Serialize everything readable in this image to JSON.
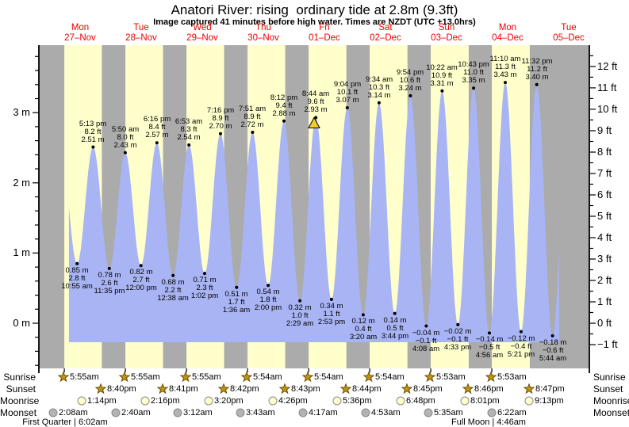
{
  "title": "Anatori River: rising  ordinary tide at 2.8m (9.3ft)",
  "subtitle": "Image captured 41 minutes before high water. Times are NZDT (UTC +13.0hrs)",
  "colors": {
    "day_band": "#ffffcc",
    "night_band": "#ababab",
    "tide_fill": "#a8b4f3",
    "day_label_red": "#ee0000",
    "star_fill": "#c5940e",
    "star_edge": "#6b5206",
    "moonrise_fill": "#ffffcc",
    "moonset_fill": "#b3b3b3",
    "moon_edge": "#8a8a8a",
    "marker_fill": "#f0d028",
    "axis": "#000000"
  },
  "rows": {
    "sunrise_label": "Sunrise",
    "sunset_label": "Sunset",
    "moonrise_label": "Moonrise",
    "moonset_label": "Moonset"
  },
  "moon_phases": [
    {
      "label": "First Quarter | 6:02am",
      "t_hours": 6.03
    },
    {
      "label": "Full Moon | 4:46am",
      "t_hours": 172.77
    }
  ],
  "chart_data": {
    "type": "area",
    "title": "Anatori River: rising ordinary tide at 2.8m (9.3ft)",
    "ylabel_left": "m",
    "ylabel_right": "ft",
    "y_axis_left": {
      "unit": "m",
      "ticks": [
        0,
        1,
        2,
        3
      ]
    },
    "y_axis_right": {
      "unit": "ft",
      "ticks": [
        -1,
        0,
        1,
        2,
        3,
        4,
        5,
        6,
        7,
        8,
        9,
        10,
        11,
        12
      ]
    },
    "days": [
      {
        "name": "Mon",
        "date": "27–Nov"
      },
      {
        "name": "Tue",
        "date": "28–Nov"
      },
      {
        "name": "Wed",
        "date": "29–Nov"
      },
      {
        "name": "Thu",
        "date": "30–Nov"
      },
      {
        "name": "Fri",
        "date": "01–Dec"
      },
      {
        "name": "Sat",
        "date": "02–Dec"
      },
      {
        "name": "Sun",
        "date": "03–Dec"
      },
      {
        "name": "Mon",
        "date": "04–Dec"
      },
      {
        "name": "Tue",
        "date": "05–Dec"
      }
    ],
    "tide_events": [
      {
        "type": "low",
        "time": "10:55 am",
        "ft": "2.8 ft",
        "m": "0.85 m",
        "height_m": 0.85,
        "t_hours": 10.917
      },
      {
        "type": "high",
        "time": "5:13 pm",
        "ft": "8.2 ft",
        "m": "2.51 m",
        "height_m": 2.51,
        "t_hours": 17.217
      },
      {
        "type": "low",
        "time": "11:35 pm",
        "ft": "2.6 ft",
        "m": "0.78 m",
        "height_m": 0.78,
        "t_hours": 23.583
      },
      {
        "type": "high",
        "time": "5:50 am",
        "ft": "8.0 ft",
        "m": "2.43 m",
        "height_m": 2.43,
        "t_hours": 29.833
      },
      {
        "type": "low",
        "time": "12:00 pm",
        "ft": "2.7 ft",
        "m": "0.82 m",
        "height_m": 0.82,
        "t_hours": 36.0
      },
      {
        "type": "high",
        "time": "6:16 pm",
        "ft": "8.4 ft",
        "m": "2.57 m",
        "height_m": 2.57,
        "t_hours": 42.267
      },
      {
        "type": "low",
        "time": "12:38 am",
        "ft": "2.2 ft",
        "m": "0.68 m",
        "height_m": 0.68,
        "t_hours": 48.633
      },
      {
        "type": "high",
        "time": "6:53 am",
        "ft": "8.3 ft",
        "m": "2.54 m",
        "height_m": 2.54,
        "t_hours": 54.883
      },
      {
        "type": "low",
        "time": "1:02 pm",
        "ft": "2.3 ft",
        "m": "0.71 m",
        "height_m": 0.71,
        "t_hours": 61.033
      },
      {
        "type": "high",
        "time": "7:16 pm",
        "ft": "8.9 ft",
        "m": "2.70 m",
        "height_m": 2.7,
        "t_hours": 67.267
      },
      {
        "type": "low",
        "time": "1:36 am",
        "ft": "1.7 ft",
        "m": "0.51 m",
        "height_m": 0.51,
        "t_hours": 73.6
      },
      {
        "type": "high",
        "time": "7:51 am",
        "ft": "8.9 ft",
        "m": "2.72 m",
        "height_m": 2.72,
        "t_hours": 79.85
      },
      {
        "type": "low",
        "time": "2:00 pm",
        "ft": "1.8 ft",
        "m": "0.54 m",
        "height_m": 0.54,
        "t_hours": 86.0
      },
      {
        "type": "high",
        "time": "8:12 pm",
        "ft": "9.4 ft",
        "m": "2.88 m",
        "height_m": 2.88,
        "t_hours": 92.2
      },
      {
        "type": "low",
        "time": "2:29 am",
        "ft": "1.0 ft",
        "m": "0.32 m",
        "height_m": 0.32,
        "t_hours": 98.483
      },
      {
        "type": "high",
        "time": "8:44 am",
        "ft": "9.6 ft",
        "m": "2.93 m",
        "height_m": 2.93,
        "t_hours": 104.733,
        "has_marker": true
      },
      {
        "type": "low",
        "time": "2:53 pm",
        "ft": "1.1 ft",
        "m": "0.34 m",
        "height_m": 0.34,
        "t_hours": 110.883
      },
      {
        "type": "high",
        "time": "9:04 pm",
        "ft": "10.1 ft",
        "m": "3.07 m",
        "height_m": 3.07,
        "t_hours": 117.067
      },
      {
        "type": "low",
        "time": "3:20 am",
        "ft": "0.4 ft",
        "m": "0.12 m",
        "height_m": 0.12,
        "t_hours": 123.333
      },
      {
        "type": "high",
        "time": "9:34 am",
        "ft": "10.3 ft",
        "m": "3.14 m",
        "height_m": 3.14,
        "t_hours": 129.567
      },
      {
        "type": "low",
        "time": "3:44 pm",
        "ft": "0.5 ft",
        "m": "0.14 m",
        "height_m": 0.14,
        "t_hours": 135.733
      },
      {
        "type": "high",
        "time": "9:54 pm",
        "ft": "10.6 ft",
        "m": "3.24 m",
        "height_m": 3.24,
        "t_hours": 141.9
      },
      {
        "type": "low",
        "time": "4:08 am",
        "ft": "−0.1 ft",
        "m": "−0.04 m",
        "height_m": -0.04,
        "t_hours": 148.133
      },
      {
        "type": "high",
        "time": "10:22 am",
        "ft": "10.9 ft",
        "m": "3.31 m",
        "height_m": 3.31,
        "t_hours": 154.367
      },
      {
        "type": "low",
        "time": "4:33 pm",
        "ft": "−0.1 ft",
        "m": "−0.02 m",
        "height_m": -0.02,
        "t_hours": 160.55
      },
      {
        "type": "high",
        "time": "10:43 pm",
        "ft": "11.0 ft",
        "m": "3.35 m",
        "height_m": 3.35,
        "t_hours": 166.717
      },
      {
        "type": "low",
        "time": "4:56 am",
        "ft": "−0.5 ft",
        "m": "−0.14 m",
        "height_m": -0.14,
        "t_hours": 172.933
      },
      {
        "type": "high",
        "time": "11:10 am",
        "ft": "11.3 ft",
        "m": "3.43 m",
        "height_m": 3.43,
        "t_hours": 179.167
      },
      {
        "type": "low",
        "time": "5:21 pm",
        "ft": "−0.4 ft",
        "m": "−0.12 m",
        "height_m": -0.12,
        "t_hours": 185.35
      },
      {
        "type": "high",
        "time": "11:32 pm",
        "ft": "11.2 ft",
        "m": "3.40 m",
        "height_m": 3.4,
        "t_hours": 191.533
      },
      {
        "type": "low",
        "time": "5:44 am",
        "ft": "−0.6 ft",
        "m": "−0.18 m",
        "height_m": -0.18,
        "t_hours": 197.733
      }
    ],
    "current_marker": {
      "t_hours": 104.05,
      "height_m": 2.85
    },
    "sun_moon": {
      "sunrise": [
        "5:55am",
        "5:55am",
        "5:55am",
        "5:54am",
        "5:54am",
        "5:54am",
        "5:53am",
        "5:53am"
      ],
      "sunset": [
        "8:40pm",
        "8:41pm",
        "8:42pm",
        "8:43pm",
        "8:44pm",
        "8:45pm",
        "8:46pm",
        "8:47pm"
      ],
      "moonrise": [
        "1:14pm",
        "2:16pm",
        "3:20pm",
        "4:26pm",
        "5:36pm",
        "6:48pm",
        "8:01pm",
        "9:13pm"
      ],
      "moonset": [
        "2:08am",
        "2:40am",
        "3:12am",
        "3:43am",
        "4:17am",
        "4:53am",
        "5:35am",
        "6:22am"
      ]
    }
  }
}
